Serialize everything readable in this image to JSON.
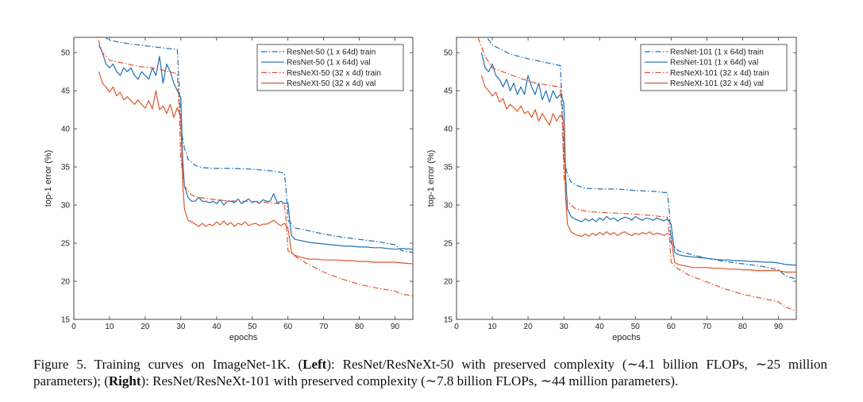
{
  "chart_data": [
    {
      "type": "line",
      "panel": "left",
      "title": "",
      "xlabel": "epochs",
      "ylabel": "top-1 error (%)",
      "xlim": [
        0,
        95
      ],
      "ylim": [
        15,
        52
      ],
      "xticks": [
        0,
        10,
        20,
        30,
        40,
        50,
        60,
        70,
        80,
        90
      ],
      "yticks": [
        15,
        20,
        25,
        30,
        35,
        40,
        45,
        50
      ],
      "legend_position": "top-right",
      "colors": {
        "resnet": "#1f6fb2",
        "resnext": "#e0552b"
      },
      "series": [
        {
          "name": "ResNet-50 (1 x 64d) train",
          "color": "#1f6fb2",
          "style": "dashdot",
          "x": [
            6,
            10,
            15,
            20,
            25,
            29,
            29.5,
            30,
            31,
            32,
            34,
            36,
            40,
            45,
            50,
            55,
            59,
            59.5,
            60,
            62,
            65,
            70,
            75,
            80,
            85,
            90,
            92,
            95
          ],
          "y": [
            53,
            51.6,
            51.2,
            50.9,
            50.6,
            50.4,
            46,
            40,
            37.5,
            36,
            35.2,
            34.9,
            34.8,
            34.8,
            34.7,
            34.5,
            34.2,
            32,
            28,
            27,
            26.7,
            26.2,
            25.8,
            25.5,
            25.2,
            24.8,
            24,
            23.8
          ]
        },
        {
          "name": "ResNet-50 (1 x 64d) val",
          "color": "#1f6fb2",
          "style": "solid",
          "x": [
            7,
            8,
            9,
            10,
            11,
            12,
            13,
            14,
            15,
            16,
            17,
            18,
            19,
            20,
            21,
            22,
            23,
            24,
            25,
            26,
            27,
            28,
            29,
            30,
            30.5,
            31,
            32,
            33,
            34,
            35,
            36,
            37,
            38,
            39,
            40,
            41,
            42,
            43,
            44,
            45,
            46,
            47,
            48,
            49,
            50,
            51,
            52,
            53,
            54,
            55,
            56,
            57,
            58,
            59,
            60,
            60.5,
            61,
            62,
            64,
            66,
            68,
            70,
            72,
            74,
            76,
            78,
            80,
            82,
            84,
            86,
            88,
            90,
            92,
            95
          ],
          "y": [
            51,
            50,
            48.5,
            48,
            48.5,
            47.5,
            47,
            48,
            47.5,
            48,
            47,
            46.5,
            47.5,
            47,
            46.5,
            48,
            47,
            49.5,
            46,
            48.5,
            47.5,
            46,
            45,
            44,
            36,
            32.5,
            31,
            30.5,
            30.5,
            31,
            30.5,
            30.5,
            30.3,
            30.5,
            30.2,
            30.7,
            30,
            30.5,
            30.5,
            30.3,
            30.8,
            30.2,
            30.5,
            30.8,
            30.3,
            30.5,
            30.2,
            30.7,
            30.5,
            30.5,
            31.5,
            30.3,
            30.5,
            30.2,
            30.3,
            28,
            26,
            25.5,
            25.3,
            25.1,
            25,
            24.9,
            24.8,
            24.7,
            24.6,
            24.6,
            24.5,
            24.5,
            24.4,
            24.4,
            24.3,
            24.2,
            24.3,
            24.2
          ]
        },
        {
          "name": "ResNeXt-50 (32 x 4d) train",
          "color": "#e0552b",
          "style": "dashdot",
          "x": [
            6,
            8,
            10,
            14,
            18,
            22,
            26,
            29,
            29.5,
            30,
            31,
            33,
            35,
            38,
            42,
            46,
            50,
            55,
            59,
            59.5,
            60,
            62,
            65,
            70,
            75,
            80,
            85,
            90,
            92,
            95
          ],
          "y": [
            53,
            50,
            49,
            48.6,
            48.2,
            48,
            47.6,
            47.2,
            43,
            36,
            32.5,
            31.3,
            31,
            30.8,
            30.6,
            30.5,
            30.5,
            30.3,
            30.1,
            28,
            24,
            23.3,
            22.4,
            21.2,
            20.3,
            19.6,
            19.1,
            18.7,
            18.3,
            18.1
          ]
        },
        {
          "name": "ResNeXt-50 (32 x 4d) val",
          "color": "#e0552b",
          "style": "solid",
          "x": [
            7,
            8,
            9,
            10,
            11,
            12,
            13,
            14,
            15,
            16,
            17,
            18,
            19,
            20,
            21,
            22,
            23,
            24,
            25,
            26,
            27,
            28,
            29,
            30,
            30.5,
            31,
            32,
            33,
            34,
            35,
            36,
            37,
            38,
            39,
            40,
            41,
            42,
            43,
            44,
            45,
            46,
            47,
            48,
            49,
            50,
            51,
            52,
            53,
            54,
            55,
            56,
            57,
            58,
            59,
            60,
            60.5,
            61,
            62,
            64,
            66,
            68,
            70,
            72,
            74,
            76,
            78,
            80,
            82,
            84,
            86,
            88,
            90,
            92,
            95
          ],
          "y": [
            47.5,
            46,
            45.5,
            44.8,
            45.5,
            44.3,
            44.8,
            43.8,
            44.2,
            43.7,
            43.2,
            43.8,
            43.2,
            42.7,
            43.7,
            42.6,
            45,
            42.5,
            43,
            42,
            43.2,
            41.5,
            42.8,
            41.5,
            33,
            29.5,
            28,
            27.8,
            27.5,
            27.2,
            27.6,
            27.2,
            27.5,
            27.3,
            27.8,
            27.4,
            27.9,
            27.4,
            27.7,
            27.2,
            27.6,
            27.4,
            27.8,
            27.3,
            27.5,
            27.6,
            27.3,
            27.5,
            27.5,
            27.7,
            28,
            27.6,
            27.3,
            27.6,
            27,
            25.5,
            23.8,
            23.4,
            23.1,
            22.9,
            22.9,
            22.8,
            22.8,
            22.8,
            22.7,
            22.7,
            22.6,
            22.6,
            22.5,
            22.5,
            22.5,
            22.5,
            22.4,
            22.3
          ]
        }
      ]
    },
    {
      "type": "line",
      "panel": "right",
      "title": "",
      "xlabel": "epochs",
      "ylabel": "top-1 error (%)",
      "xlim": [
        0,
        95
      ],
      "ylim": [
        15,
        52
      ],
      "xticks": [
        0,
        10,
        20,
        30,
        40,
        50,
        60,
        70,
        80,
        90
      ],
      "yticks": [
        15,
        20,
        25,
        30,
        35,
        40,
        45,
        50
      ],
      "legend_position": "top-right",
      "colors": {
        "resnet": "#1f6fb2",
        "resnext": "#e0552b"
      },
      "series": [
        {
          "name": "ResNet-101 (1 x 64d) train",
          "color": "#1f6fb2",
          "style": "dashdot",
          "x": [
            7,
            10,
            15,
            20,
            25,
            29,
            29.5,
            30,
            31,
            32,
            34,
            36,
            40,
            45,
            50,
            55,
            59,
            59.5,
            60,
            62,
            65,
            70,
            75,
            80,
            85,
            90,
            92,
            95
          ],
          "y": [
            53,
            51,
            49.8,
            49.2,
            48.7,
            48.3,
            44,
            36,
            34,
            33,
            32.5,
            32.2,
            32.1,
            32.1,
            31.9,
            31.8,
            31.6,
            29,
            25,
            24,
            23.6,
            23,
            22.6,
            22.3,
            22,
            21.5,
            20.7,
            20.3
          ]
        },
        {
          "name": "ResNet-101 (1 x 64d) val",
          "color": "#1f6fb2",
          "style": "solid",
          "x": [
            7,
            8,
            9,
            10,
            11,
            12,
            13,
            14,
            15,
            16,
            17,
            18,
            19,
            20,
            21,
            22,
            23,
            24,
            25,
            26,
            27,
            28,
            29,
            30,
            30.5,
            31,
            32,
            33,
            34,
            35,
            36,
            37,
            38,
            39,
            40,
            41,
            42,
            43,
            44,
            45,
            46,
            47,
            48,
            49,
            50,
            51,
            52,
            53,
            54,
            55,
            56,
            57,
            58,
            59,
            60,
            60.5,
            61,
            62,
            64,
            66,
            68,
            70,
            72,
            74,
            76,
            78,
            80,
            82,
            84,
            86,
            88,
            90,
            92,
            95
          ],
          "y": [
            50,
            48,
            47.5,
            48.5,
            47,
            46.5,
            45.5,
            46.5,
            45,
            46,
            44.5,
            45.5,
            44.5,
            47,
            45.5,
            44.5,
            46,
            43.8,
            45,
            43.5,
            45,
            44,
            44.5,
            43.5,
            34,
            29.5,
            28.5,
            28.2,
            28,
            27.8,
            28.2,
            27.9,
            28.2,
            27.8,
            28.3,
            28,
            28.5,
            28.1,
            28.3,
            27.9,
            28.2,
            28.4,
            28.3,
            28,
            28.5,
            28.2,
            28,
            28.3,
            28.2,
            28,
            28.3,
            28.1,
            27.9,
            28.2,
            27.5,
            25.5,
            23.8,
            23.5,
            23.3,
            23.2,
            23.1,
            23,
            22.9,
            22.8,
            22.8,
            22.7,
            22.7,
            22.6,
            22.6,
            22.5,
            22.5,
            22.4,
            22.2,
            22.1
          ]
        },
        {
          "name": "ResNeXt-101 (32 x 4d) train",
          "color": "#e0552b",
          "style": "dashdot",
          "x": [
            6,
            8,
            10,
            14,
            18,
            22,
            26,
            29,
            29.5,
            30,
            31,
            33,
            35,
            38,
            42,
            46,
            50,
            55,
            59,
            59.5,
            60,
            62,
            65,
            70,
            75,
            80,
            85,
            90,
            92,
            95
          ],
          "y": [
            52,
            49.5,
            48,
            47.3,
            46.6,
            46,
            45.7,
            45.5,
            42,
            34,
            30.5,
            29.6,
            29.3,
            29.1,
            29,
            28.9,
            28.8,
            28.6,
            28.4,
            26,
            22.5,
            21.6,
            20.8,
            19.9,
            19,
            18.3,
            17.8,
            17.3,
            16.6,
            16.1
          ]
        },
        {
          "name": "ResNeXt-101 (32 x 4d) val",
          "color": "#e0552b",
          "style": "solid",
          "x": [
            7,
            8,
            9,
            10,
            11,
            12,
            13,
            14,
            15,
            16,
            17,
            18,
            19,
            20,
            21,
            22,
            23,
            24,
            25,
            26,
            27,
            28,
            29,
            30,
            30.5,
            31,
            32,
            33,
            34,
            35,
            36,
            37,
            38,
            39,
            40,
            41,
            42,
            43,
            44,
            45,
            46,
            47,
            48,
            49,
            50,
            51,
            52,
            53,
            54,
            55,
            56,
            57,
            58,
            59,
            60,
            60.5,
            61,
            62,
            64,
            66,
            68,
            70,
            72,
            74,
            76,
            78,
            80,
            82,
            84,
            86,
            88,
            90,
            92,
            95
          ],
          "y": [
            47,
            45.5,
            45,
            44.3,
            44.8,
            43.5,
            44,
            42.6,
            43.2,
            42.8,
            42.3,
            43,
            42,
            42.3,
            41.5,
            42.5,
            41,
            42,
            41.2,
            40.5,
            42,
            41,
            41.8,
            41,
            31,
            27.5,
            26.5,
            26.2,
            26,
            25.9,
            26.2,
            25.9,
            26.3,
            26,
            26.4,
            26.1,
            26.5,
            26.1,
            26.4,
            26,
            26.3,
            26.5,
            26.2,
            26,
            26.3,
            26.1,
            26.4,
            26.2,
            26.5,
            26.1,
            26.3,
            26.2,
            26,
            26.3,
            26,
            24,
            22.5,
            22.2,
            22,
            21.8,
            21.8,
            21.8,
            21.7,
            21.7,
            21.6,
            21.6,
            21.5,
            21.5,
            21.4,
            21.4,
            21.4,
            21.4,
            21.2,
            21.2
          ]
        }
      ]
    }
  ],
  "caption": {
    "lead": "Figure 5. Training curves on ImageNet-1K. (",
    "left_bold": "Left",
    "mid": "): ResNet/ResNeXt-50 with preserved complexity (∼4.1 billion FLOPs, ∼25 million parameters); (",
    "right_bold": "Right",
    "tail": "): ResNet/ResNeXt-101 with preserved complexity (∼7.8 billion FLOPs, ∼44 million parameters)."
  }
}
